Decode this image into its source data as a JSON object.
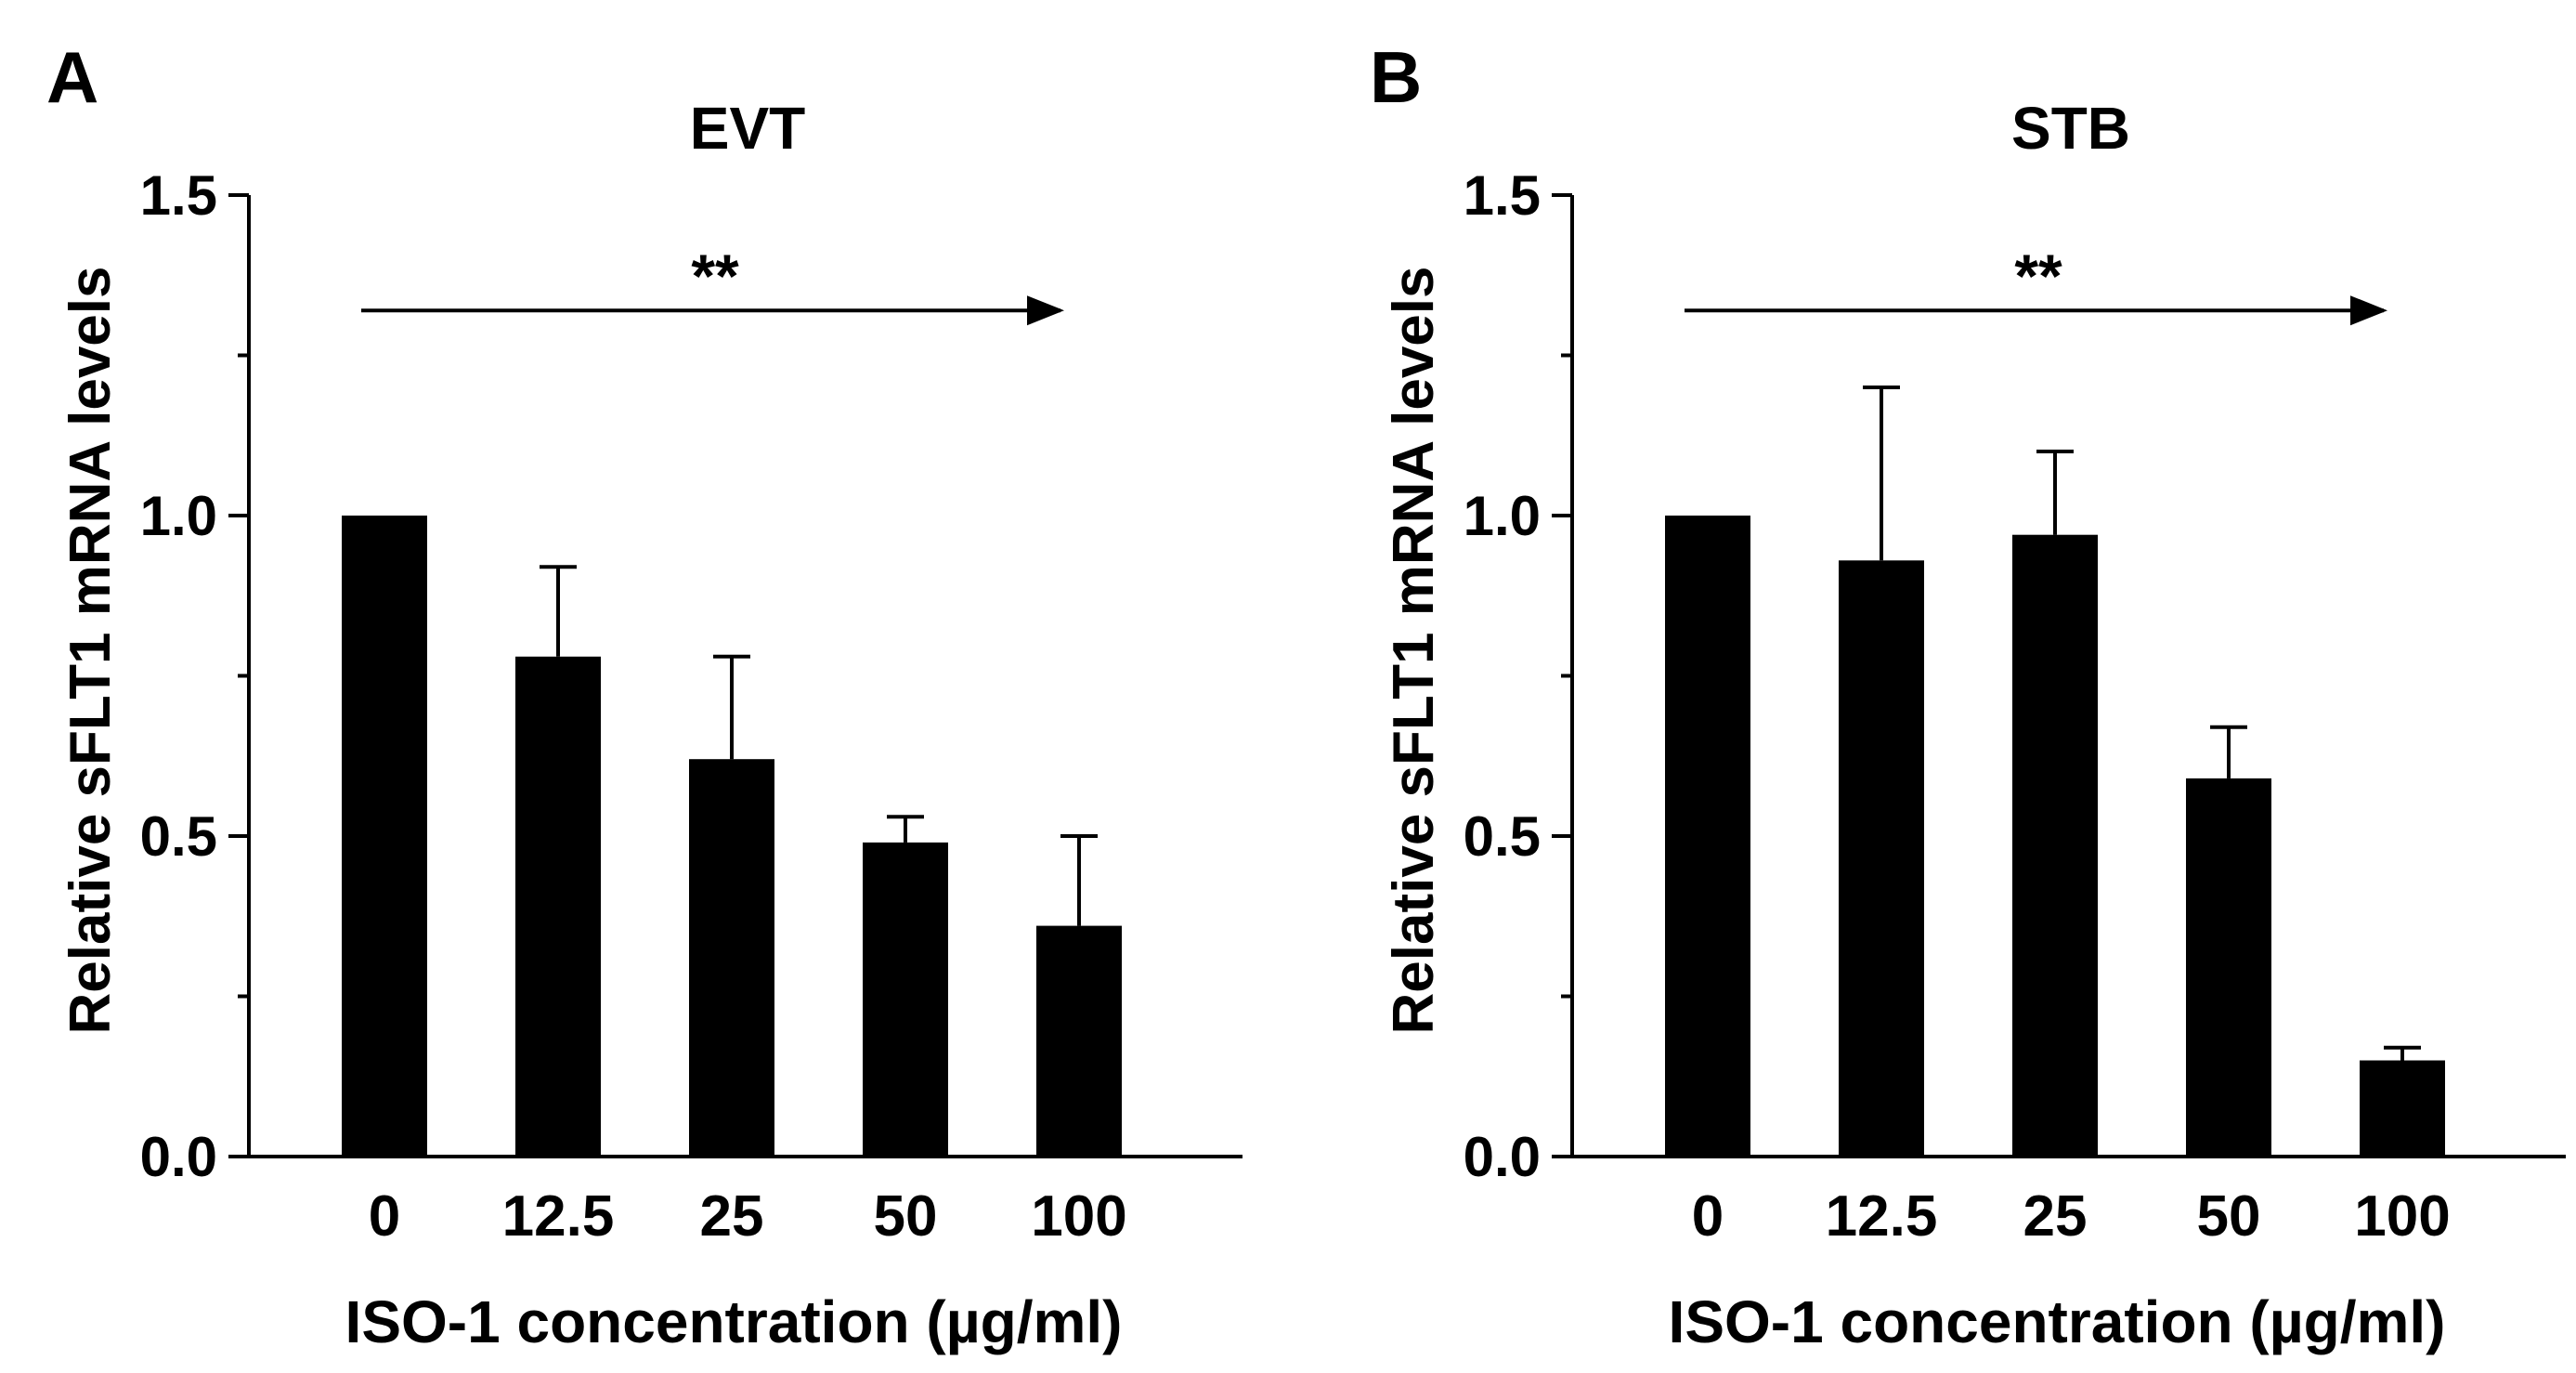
{
  "chart_data": [
    {
      "panel_label": "A",
      "type": "bar",
      "title": "EVT",
      "xlabel": "ISO-1 concentration (µg/ml)",
      "ylabel": "Relative sFLT1 mRNA levels",
      "categories": [
        "0",
        "12.5",
        "25",
        "50",
        "100"
      ],
      "values": [
        1.0,
        0.78,
        0.62,
        0.49,
        0.36
      ],
      "error_upper": [
        0.0,
        0.14,
        0.16,
        0.04,
        0.14
      ],
      "ylim": [
        0,
        1.5
      ],
      "yticks": [
        0.0,
        0.5,
        1.0,
        1.5
      ],
      "ytick_labels": [
        "0.0",
        "0.5",
        "1.0",
        "1.5"
      ],
      "bar_color": "#000000",
      "annotation": {
        "text": "**",
        "type": "trend-arrow",
        "value": 1.32,
        "from_category": "0",
        "to_category": "100"
      }
    },
    {
      "panel_label": "B",
      "type": "bar",
      "title": "STB",
      "xlabel": "ISO-1 concentration (µg/ml)",
      "ylabel": "Relative sFLT1 mRNA levels",
      "categories": [
        "0",
        "12.5",
        "25",
        "50",
        "100"
      ],
      "values": [
        1.0,
        0.93,
        0.97,
        0.59,
        0.15
      ],
      "error_upper": [
        0.0,
        0.27,
        0.13,
        0.08,
        0.02
      ],
      "ylim": [
        0,
        1.5
      ],
      "yticks": [
        0.0,
        0.5,
        1.0,
        1.5
      ],
      "ytick_labels": [
        "0.0",
        "0.5",
        "1.0",
        "1.5"
      ],
      "bar_color": "#000000",
      "annotation": {
        "text": "**",
        "type": "trend-arrow",
        "value": 1.32,
        "from_category": "0",
        "to_category": "100"
      }
    }
  ]
}
